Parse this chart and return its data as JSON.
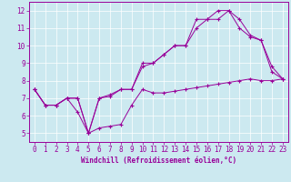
{
  "title": "",
  "xlabel": "Windchill (Refroidissement éolien,°C)",
  "ylabel": "",
  "background_color": "#cce9f0",
  "grid_color": "#ffffff",
  "line_color": "#990099",
  "xlim": [
    -0.5,
    23.5
  ],
  "ylim": [
    4.5,
    12.5
  ],
  "xticks": [
    0,
    1,
    2,
    3,
    4,
    5,
    6,
    7,
    8,
    9,
    10,
    11,
    12,
    13,
    14,
    15,
    16,
    17,
    18,
    19,
    20,
    21,
    22,
    23
  ],
  "yticks": [
    5,
    6,
    7,
    8,
    9,
    10,
    11,
    12
  ],
  "series1_x": [
    0,
    1,
    2,
    3,
    4,
    5,
    6,
    7,
    8,
    9,
    10,
    11,
    12,
    13,
    14,
    15,
    16,
    17,
    18,
    19,
    20,
    21,
    22,
    23
  ],
  "series1_y": [
    7.5,
    6.6,
    6.6,
    7.0,
    6.2,
    5.0,
    5.3,
    5.4,
    5.5,
    6.6,
    7.5,
    7.3,
    7.3,
    7.4,
    7.5,
    7.6,
    7.7,
    7.8,
    7.9,
    8.0,
    8.1,
    8.0,
    8.0,
    8.1
  ],
  "series2_x": [
    0,
    1,
    2,
    3,
    4,
    5,
    6,
    7,
    8,
    9,
    10,
    11,
    12,
    13,
    14,
    15,
    16,
    17,
    18,
    19,
    20,
    21,
    22,
    23
  ],
  "series2_y": [
    7.5,
    6.6,
    6.6,
    7.0,
    7.0,
    5.0,
    7.0,
    7.1,
    7.5,
    7.5,
    8.8,
    9.0,
    9.5,
    10.0,
    10.0,
    11.5,
    11.5,
    11.5,
    12.0,
    11.0,
    10.5,
    10.3,
    8.8,
    8.1
  ],
  "series3_x": [
    0,
    1,
    2,
    3,
    4,
    5,
    6,
    7,
    8,
    9,
    10,
    11,
    12,
    13,
    14,
    15,
    16,
    17,
    18,
    19,
    20,
    21,
    22,
    23
  ],
  "series3_y": [
    7.5,
    6.6,
    6.6,
    7.0,
    7.0,
    5.0,
    7.0,
    7.2,
    7.5,
    7.5,
    9.0,
    9.0,
    9.5,
    10.0,
    10.0,
    11.0,
    11.5,
    12.0,
    12.0,
    11.5,
    10.6,
    10.3,
    8.5,
    8.1
  ],
  "tick_fontsize": 5.5,
  "xlabel_fontsize": 5.5
}
